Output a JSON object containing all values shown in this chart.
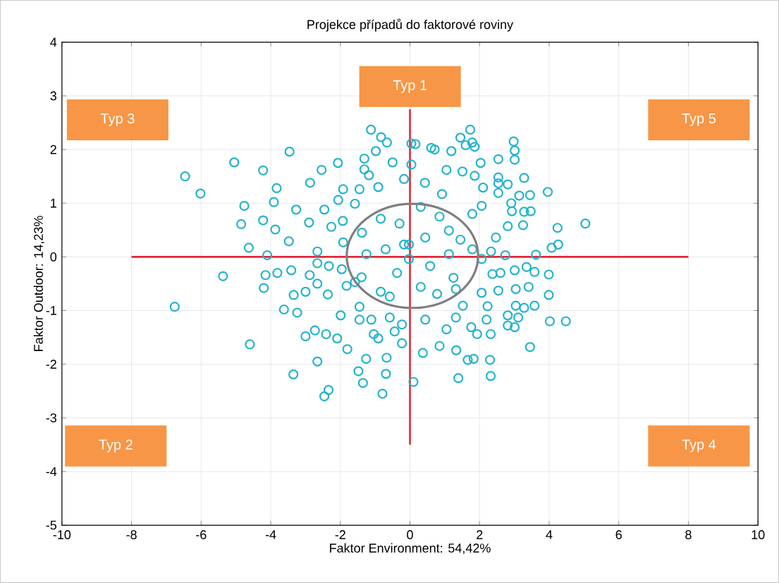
{
  "chart_data": {
    "type": "scatter",
    "title": "Projekce případů do faktorové roviny",
    "xlabel": "Faktor Environment: 54,42%",
    "ylabel": "Faktor Outdoor: 14,23%",
    "xlim": [
      -10,
      10
    ],
    "ylim": [
      -5,
      4
    ],
    "xticks": [
      -10,
      -8,
      -6,
      -4,
      -2,
      0,
      2,
      4,
      6,
      8,
      10
    ],
    "yticks": [
      -5,
      -4,
      -3,
      -2,
      -1,
      0,
      1,
      2,
      3,
      4
    ],
    "grid": true,
    "marker": "circle",
    "series": [
      {
        "color": "#22b3cc",
        "x": [
          -6.46,
          -6.02,
          -5.05,
          -6.76,
          -5.37,
          -4.6,
          -4.76,
          -4.85,
          -4.63,
          -4.22,
          -3.83,
          -3.46,
          -3.91,
          -4.22,
          -3.87,
          -4.1,
          -4.15,
          -4.2,
          -3.81,
          -3.41,
          -3.27,
          -3.48,
          -3.62,
          -3.24,
          -3.34,
          -3.35,
          -3.0,
          -2.66,
          -2.46,
          -2.34,
          -2.9,
          -2.87,
          -2.54,
          -2.07,
          -2.46,
          -2.26,
          -2.66,
          -2.66,
          -2.33,
          -2.88,
          -2.66,
          -2.36,
          -3.0,
          -2.73,
          -2.41,
          -2.09,
          -1.99,
          -1.8,
          -1.48,
          -1.35,
          -1.26,
          -0.79,
          -0.69,
          -0.67,
          -1.12,
          -0.83,
          -0.66,
          -0.98,
          -0.5,
          -1.31,
          -1.31,
          -1.18,
          -1.92,
          -1.45,
          -0.91,
          -2.06,
          -1.58,
          -1.93,
          -1.92,
          -1.96,
          -1.82,
          -1.58,
          -1.45,
          -1.45,
          -1.11,
          -0.91,
          -1.04,
          -0.23,
          -0.44,
          0.1,
          -1.38,
          -1.25,
          -1.39,
          -0.84,
          -0.58,
          -0.84,
          -0.3,
          -0.17,
          -0.7,
          -0.37,
          -0.03,
          -0.58,
          -0.23,
          -0.17,
          0.04,
          1.73,
          1.45,
          1.79,
          1.86,
          1.6,
          2.98,
          3.01,
          3.01,
          0.16,
          0.61,
          0.71,
          1.19,
          2.54,
          2.03,
          1.05,
          1.51,
          1.86,
          2.54,
          3.28,
          2.81,
          2.54,
          0.43,
          3.96,
          3.45,
          3.14,
          2.1,
          2.54,
          2.91,
          3.47,
          3.28,
          2.93,
          5.04,
          4.24,
          2.81,
          3.25,
          4.26,
          4.07,
          3.62,
          2.74,
          2.06,
          2.33,
          2.47,
          1.79,
          2.06,
          1.79,
          3.99,
          3.58,
          3.35,
          3.01,
          2.37,
          2.6,
          3.41,
          3.04,
          2.54,
          2.06,
          3.99,
          3.58,
          3.28,
          3.04,
          2.23,
          2.81,
          3.11,
          2.2,
          4.02,
          4.48,
          3.01,
          2.81,
          2.32,
          1.76,
          1.93,
          3.45,
          1.33,
          1.66,
          1.83,
          2.3,
          2.32,
          1.39,
          0.37,
          0.85,
          1.05,
          0.44,
          1.32,
          0.78,
          0.31,
          1.25,
          0.58,
          1.12,
          0.44,
          1.12,
          1.45,
          0.85,
          0.31,
          0.92,
          0.04,
          1.32,
          1.52,
          -0.03
        ],
        "values": [
          1.5,
          1.18,
          1.76,
          -0.93,
          -0.36,
          -1.63,
          0.95,
          0.61,
          0.17,
          1.61,
          1.28,
          1.96,
          1.02,
          0.68,
          0.51,
          0.03,
          -0.34,
          -0.58,
          -0.3,
          -0.25,
          0.88,
          0.29,
          -0.98,
          -1.04,
          -0.71,
          -2.19,
          -1.48,
          -1.95,
          -2.6,
          -2.48,
          0.64,
          1.38,
          1.62,
          1.75,
          0.88,
          0.56,
          0.1,
          -0.12,
          -0.17,
          -0.34,
          -0.5,
          -0.7,
          -0.65,
          -1.37,
          -1.44,
          -1.52,
          -1.09,
          -1.72,
          -2.13,
          -2.35,
          -1.9,
          -2.55,
          -2.18,
          -1.88,
          2.37,
          2.23,
          2.13,
          1.97,
          1.76,
          1.83,
          1.63,
          1.52,
          1.26,
          1.26,
          1.3,
          1.06,
          0.99,
          0.67,
          0.27,
          -0.23,
          -0.54,
          -0.47,
          -0.93,
          -1.17,
          -1.17,
          -1.52,
          -1.44,
          -1.61,
          -1.39,
          -2.33,
          0.45,
          0.05,
          -0.38,
          -0.65,
          -0.74,
          0.71,
          0.62,
          0.23,
          0.14,
          -0.3,
          -0.04,
          -1.13,
          -1.26,
          1.45,
          2.11,
          2.37,
          2.22,
          2.13,
          2.05,
          2.08,
          2.15,
          1.98,
          1.81,
          2.1,
          2.03,
          2.0,
          1.97,
          1.82,
          1.75,
          1.62,
          1.59,
          1.51,
          1.48,
          1.47,
          1.35,
          1.37,
          1.38,
          1.21,
          1.15,
          1.14,
          1.29,
          1.19,
          1.0,
          0.85,
          0.84,
          0.85,
          0.62,
          0.54,
          0.57,
          0.59,
          0.23,
          0.17,
          0.04,
          0.03,
          -0.04,
          0.1,
          0.36,
          0.14,
          0.95,
          0.8,
          -0.33,
          -0.28,
          -0.19,
          -0.25,
          -0.32,
          -0.3,
          -0.56,
          -0.6,
          -0.63,
          -0.67,
          -0.71,
          -0.91,
          -0.95,
          -0.91,
          -0.92,
          -1.09,
          -1.13,
          -1.17,
          -1.2,
          -1.2,
          -1.31,
          -1.28,
          -1.44,
          -1.31,
          -1.44,
          -1.68,
          -1.74,
          -1.92,
          -1.9,
          -1.92,
          -2.22,
          -2.26,
          -1.79,
          -1.66,
          -1.35,
          -1.17,
          -1.13,
          -0.69,
          -0.56,
          -0.39,
          -0.17,
          0.05,
          0.36,
          0.49,
          0.32,
          0.75,
          0.93,
          1.17,
          1.72,
          -0.6,
          -0.91,
          0.23
        ]
      },
      {
        "type": "line",
        "color": "#e32636",
        "marker": "none",
        "x": [
          -8,
          8
        ],
        "values": [
          0,
          0
        ]
      },
      {
        "type": "line",
        "color": "#e32636",
        "marker": "none",
        "x": [
          0,
          0
        ],
        "values": [
          2.75,
          -3.5
        ]
      }
    ],
    "annotations": [
      "Typ 1",
      "Typ 3",
      "Typ 5",
      "Typ 2",
      "Typ 4"
    ]
  }
}
